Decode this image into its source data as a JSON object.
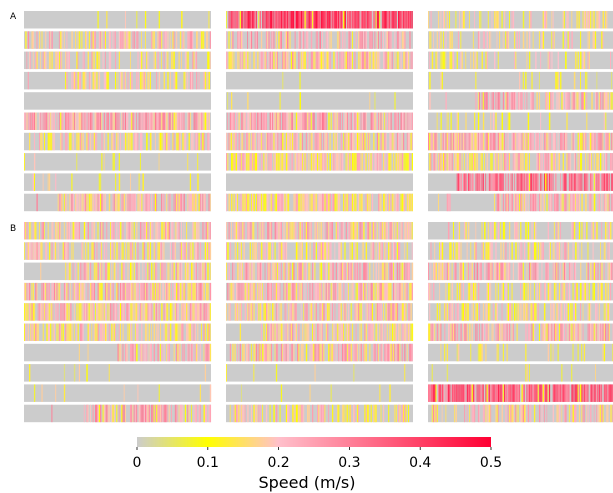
{
  "chart_data": {
    "type": "heatmap",
    "panels": [
      {
        "label": "A",
        "columns": 3,
        "rows_per_column": 10,
        "columns_data": [
          {
            "rows": [
              {
                "density": 0.06,
                "level": 0.12
              },
              {
                "density": 0.55,
                "level": 0.2
              },
              {
                "density": 0.45,
                "level": 0.18
              },
              {
                "density": 0.5,
                "level": 0.17,
                "start": 0.22
              },
              {
                "density": 0.0,
                "level": 0.0
              },
              {
                "density": 0.85,
                "level": 0.24
              },
              {
                "density": 0.55,
                "level": 0.18
              },
              {
                "density": 0.08,
                "level": 0.13
              },
              {
                "density": 0.1,
                "level": 0.14
              },
              {
                "density": 0.75,
                "level": 0.22,
                "start": 0.18
              }
            ]
          },
          {
            "rows": [
              {
                "density": 0.95,
                "level": 0.4
              },
              {
                "density": 0.55,
                "level": 0.23
              },
              {
                "density": 0.75,
                "level": 0.2
              },
              {
                "density": 0.03,
                "level": 0.1
              },
              {
                "density": 0.06,
                "level": 0.12
              },
              {
                "density": 0.8,
                "level": 0.24
              },
              {
                "density": 0.8,
                "level": 0.2
              },
              {
                "density": 0.85,
                "level": 0.17
              },
              {
                "density": 0.0,
                "level": 0.0
              },
              {
                "density": 0.8,
                "level": 0.18
              }
            ]
          },
          {
            "rows": [
              {
                "density": 0.4,
                "level": 0.15
              },
              {
                "density": 0.35,
                "level": 0.17
              },
              {
                "density": 0.3,
                "level": 0.15
              },
              {
                "density": 0.1,
                "level": 0.11
              },
              {
                "density": 0.7,
                "level": 0.23,
                "start": 0.25
              },
              {
                "density": 0.2,
                "level": 0.13
              },
              {
                "density": 0.85,
                "level": 0.22
              },
              {
                "density": 0.7,
                "level": 0.19
              },
              {
                "density": 0.8,
                "level": 0.33,
                "start": 0.15
              },
              {
                "density": 0.75,
                "level": 0.21,
                "start": 0.35
              }
            ]
          }
        ]
      },
      {
        "label": "B",
        "columns": 3,
        "rows_per_column": 10,
        "columns_data": [
          {
            "rows": [
              {
                "density": 0.6,
                "level": 0.2
              },
              {
                "density": 0.65,
                "level": 0.19
              },
              {
                "density": 0.7,
                "level": 0.19,
                "start": 0.22
              },
              {
                "density": 0.75,
                "level": 0.21
              },
              {
                "density": 0.85,
                "level": 0.2
              },
              {
                "density": 0.65,
                "level": 0.19
              },
              {
                "density": 0.75,
                "level": 0.22,
                "start": 0.5
              },
              {
                "density": 0.07,
                "level": 0.1
              },
              {
                "density": 0.06,
                "level": 0.11
              },
              {
                "density": 0.75,
                "level": 0.24,
                "start": 0.32
              }
            ]
          },
          {
            "rows": [
              {
                "density": 0.7,
                "level": 0.21
              },
              {
                "density": 0.55,
                "level": 0.18
              },
              {
                "density": 0.75,
                "level": 0.22
              },
              {
                "density": 0.8,
                "level": 0.21
              },
              {
                "density": 0.7,
                "level": 0.2
              },
              {
                "density": 0.7,
                "level": 0.19,
                "start": 0.18
              },
              {
                "density": 0.75,
                "level": 0.22
              },
              {
                "density": 0.04,
                "level": 0.1
              },
              {
                "density": 0.03,
                "level": 0.1
              },
              {
                "density": 0.55,
                "level": 0.18
              }
            ]
          },
          {
            "rows": [
              {
                "density": 0.35,
                "level": 0.17,
                "start": 0.1
              },
              {
                "density": 0.5,
                "level": 0.18
              },
              {
                "density": 0.65,
                "level": 0.22
              },
              {
                "density": 0.45,
                "level": 0.16
              },
              {
                "density": 0.5,
                "level": 0.17
              },
              {
                "density": 0.7,
                "level": 0.22
              },
              {
                "density": 0.2,
                "level": 0.13
              },
              {
                "density": 0.06,
                "level": 0.11
              },
              {
                "density": 0.9,
                "level": 0.36
              },
              {
                "density": 0.55,
                "level": 0.2
              }
            ]
          }
        ]
      }
    ],
    "colorbar": {
      "label": "Speed (m/s)",
      "range": [
        0,
        0.5
      ],
      "ticks": [
        0,
        0.1,
        0.2,
        0.3,
        0.4,
        0.5
      ],
      "tick_labels": [
        "0",
        "0.1",
        "0.2",
        "0.3",
        "0.4",
        "0.5"
      ],
      "colors": [
        {
          "value": 0.0,
          "color": "#cccccc"
        },
        {
          "value": 0.1,
          "color": "#ffff00"
        },
        {
          "value": 0.2,
          "color": "#ffc0cb"
        },
        {
          "value": 0.5,
          "color": "#ff0033"
        }
      ]
    }
  }
}
